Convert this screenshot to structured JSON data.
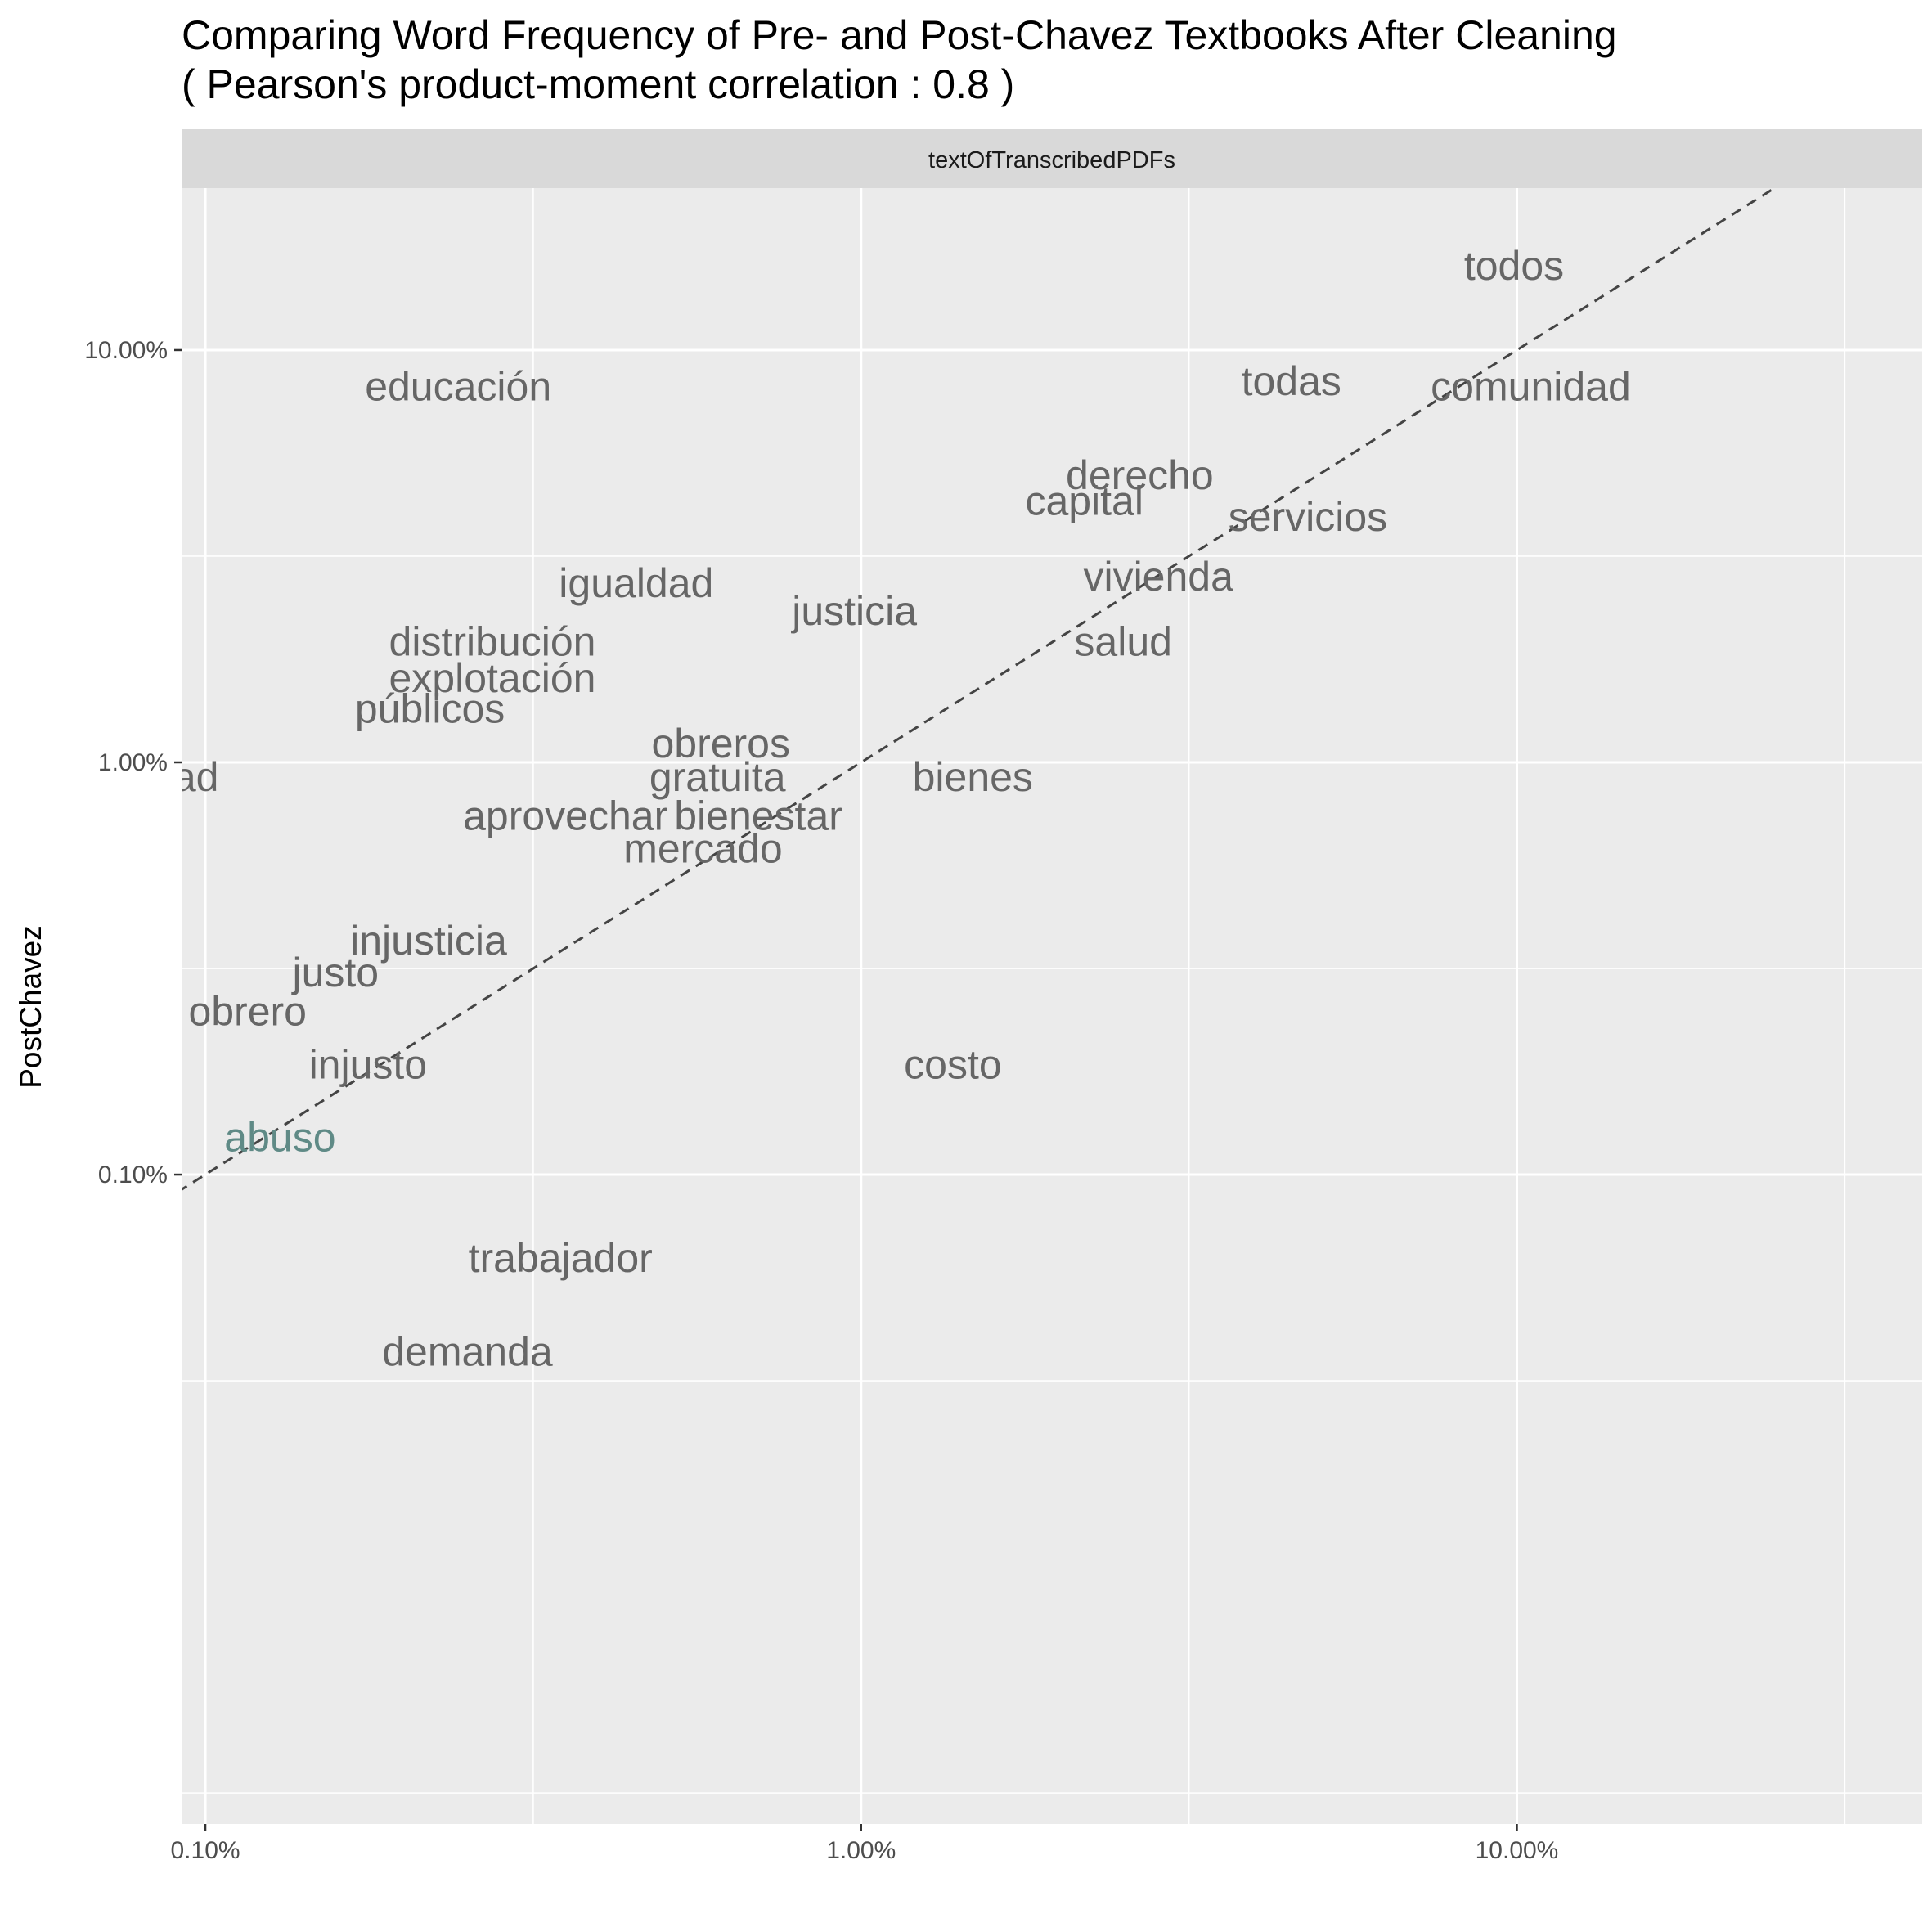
{
  "title_lines": [
    "Comparing Word Frequency of Pre- and Post-Chavez Textbooks After Cleaning",
    "( Pearson's product-moment correlation :  0.8 )"
  ],
  "chart_data": {
    "type": "scatter",
    "title": "Comparing Word Frequency of Pre- and Post-Chavez Textbooks After Cleaning ( Pearson's product-moment correlation :  0.8 )",
    "facet": "textOfTranscribedPDFs",
    "xlabel": "",
    "ylabel": "PostChavez",
    "x_scale": "log10",
    "y_scale": "log10",
    "xlim": [
      0.00092,
      0.415
    ],
    "ylim": [
      2.66e-05,
      0.247
    ],
    "x_ticks": [
      0.001,
      0.01,
      0.1
    ],
    "x_tick_labels": [
      "0.10%",
      "1.00%",
      "10.00%"
    ],
    "y_ticks": [
      0.001,
      0.01,
      0.1
    ],
    "y_tick_labels": [
      "0.10%",
      "1.00%",
      "10.00%"
    ],
    "grid": true,
    "reference_line": "y = x (dashed)",
    "points": [
      {
        "label": "todos",
        "x": 0.099,
        "y": 0.16,
        "color": "#666666"
      },
      {
        "label": "todas",
        "x": 0.0453,
        "y": 0.084,
        "color": "#666666"
      },
      {
        "label": "comunidad",
        "x": 0.105,
        "y": 0.0815,
        "color": "#666666"
      },
      {
        "label": "educación",
        "x": 0.00243,
        "y": 0.0815,
        "color": "#666666"
      },
      {
        "label": "derecho",
        "x": 0.0266,
        "y": 0.0497,
        "color": "#666666"
      },
      {
        "label": "capital",
        "x": 0.0219,
        "y": 0.043,
        "color": "#666666"
      },
      {
        "label": "servicios",
        "x": 0.048,
        "y": 0.0394,
        "color": "#666666"
      },
      {
        "label": "vivienda",
        "x": 0.0284,
        "y": 0.0282,
        "color": "#666666"
      },
      {
        "label": "igualdad",
        "x": 0.00454,
        "y": 0.0272,
        "color": "#666666"
      },
      {
        "label": "justicia",
        "x": 0.00977,
        "y": 0.0233,
        "color": "#666666"
      },
      {
        "label": "salud",
        "x": 0.0251,
        "y": 0.0196,
        "color": "#666666"
      },
      {
        "label": "distribución",
        "x": 0.00274,
        "y": 0.0196,
        "color": "#666666"
      },
      {
        "label": "explotación",
        "x": 0.00274,
        "y": 0.016,
        "color": "#666666"
      },
      {
        "label": "públicos",
        "x": 0.0022,
        "y": 0.0135,
        "color": "#666666"
      },
      {
        "label": "obreros",
        "x": 0.00611,
        "y": 0.0111,
        "color": "#666666"
      },
      {
        "label": "gratuita",
        "x": 0.00604,
        "y": 0.00922,
        "color": "#666666"
      },
      {
        "label": "bienes",
        "x": 0.0148,
        "y": 0.00922,
        "color": "#666666"
      },
      {
        "label": "aprovechar",
        "x": 0.00354,
        "y": 0.00742,
        "color": "#666666"
      },
      {
        "label": "bienestar",
        "x": 0.00697,
        "y": 0.00742,
        "color": "#666666"
      },
      {
        "label": "mercado",
        "x": 0.00574,
        "y": 0.00618,
        "color": "#666666"
      },
      {
        "label": "injusticia",
        "x": 0.00219,
        "y": 0.00369,
        "color": "#666666"
      },
      {
        "label": "justo",
        "x": 0.00158,
        "y": 0.00309,
        "color": "#666666"
      },
      {
        "label": "obrero",
        "x": 0.00116,
        "y": 0.00249,
        "color": "#666666"
      },
      {
        "label": "injusto",
        "x": 0.00177,
        "y": 0.00185,
        "color": "#666666"
      },
      {
        "label": "costo",
        "x": 0.0138,
        "y": 0.00185,
        "color": "#666666"
      },
      {
        "label": "abuso",
        "x": 0.0013,
        "y": 0.00123,
        "color": "#5f8a86"
      },
      {
        "label": "trabajador",
        "x": 0.00348,
        "y": 0.000627,
        "color": "#666666"
      },
      {
        "label": "demanda",
        "x": 0.00251,
        "y": 0.000372,
        "color": "#666666"
      },
      {
        "label": "dad",
        "x": 0.00093,
        "y": 0.00922,
        "color": "#666666"
      }
    ]
  }
}
